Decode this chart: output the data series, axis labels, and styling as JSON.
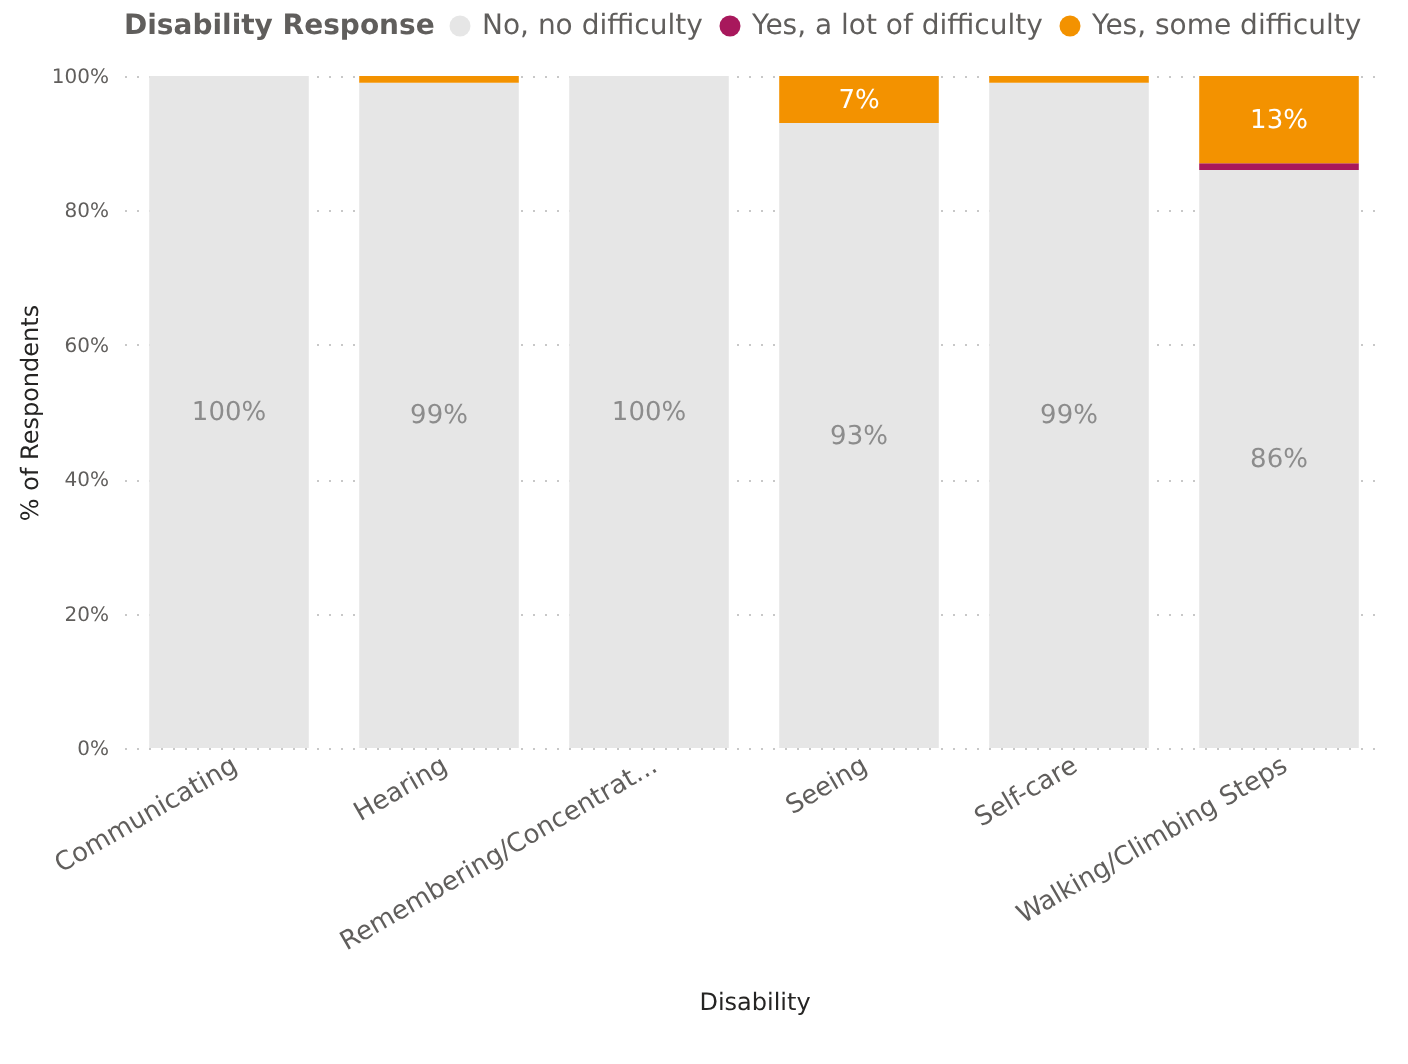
{
  "chart_data": {
    "type": "bar",
    "stacked": true,
    "xlabel": "Disability",
    "ylabel": "% of Respondents",
    "legend_title": "Disability Response",
    "legend": "top",
    "categories": [
      "Communicating",
      "Hearing",
      "Remembering/Concentrat...",
      "Seeing",
      "Self-care",
      "Walking/Climbing Steps"
    ],
    "series": [
      {
        "name": "No, no difficulty",
        "color": "#e6e6e6",
        "values": [
          100,
          99,
          100,
          93,
          99,
          86
        ],
        "value_labels": [
          "100%",
          "99%",
          "100%",
          "93%",
          "99%",
          "86%"
        ]
      },
      {
        "name": "Yes, a lot of difficulty",
        "color": "#a8185c",
        "values": [
          0,
          0,
          0,
          0,
          0,
          1
        ],
        "value_labels": [
          null,
          null,
          null,
          null,
          null,
          null
        ]
      },
      {
        "name": "Yes, some difficulty",
        "color": "#f39200",
        "values": [
          0,
          1,
          0,
          7,
          1,
          13
        ],
        "value_labels": [
          null,
          null,
          null,
          "7%",
          null,
          "13%"
        ]
      }
    ],
    "ylim": [
      0,
      100
    ],
    "yticks": [
      {
        "value": 0,
        "label": "0%"
      },
      {
        "value": 20,
        "label": "20%"
      },
      {
        "value": 40,
        "label": "40%"
      },
      {
        "value": 60,
        "label": "60%"
      },
      {
        "value": 80,
        "label": "80%"
      },
      {
        "value": 100,
        "label": "100%"
      }
    ],
    "grid": "y"
  }
}
